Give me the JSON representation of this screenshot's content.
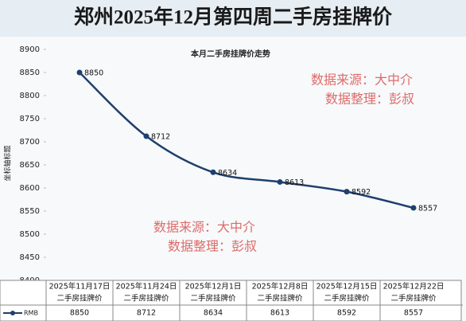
{
  "chart_data": {
    "type": "line",
    "title": "郑州2025年12月第四周二手房挂牌价",
    "subtitle": "本月二手房挂牌价走势",
    "y_label": "坐标轴标题",
    "categories": [
      [
        "2025年11月17日",
        "二手房挂牌价"
      ],
      [
        "2025年11月24日",
        "二手房挂牌价"
      ],
      [
        "2025年12月1日",
        "二手房挂牌价"
      ],
      [
        "2025年12月8日",
        "二手房挂牌价"
      ],
      [
        "2025年12月15日",
        "二手房挂牌价"
      ],
      [
        "2025年12月22日",
        "二手房挂牌价"
      ]
    ],
    "series": [
      {
        "name": "RMB",
        "color": "#1f3f6e",
        "values": [
          8850,
          8712,
          8634,
          8613,
          8592,
          8557
        ]
      }
    ],
    "ylim": [
      8400,
      8900
    ],
    "yticks": [
      8400,
      8450,
      8500,
      8550,
      8600,
      8650,
      8700,
      8750,
      8800,
      8850,
      8900
    ],
    "annotations": [
      [
        "数据来源：大中介",
        "数据整理：彭叔"
      ],
      [
        "数据来源：大中介",
        "数据整理：彭叔"
      ]
    ]
  }
}
